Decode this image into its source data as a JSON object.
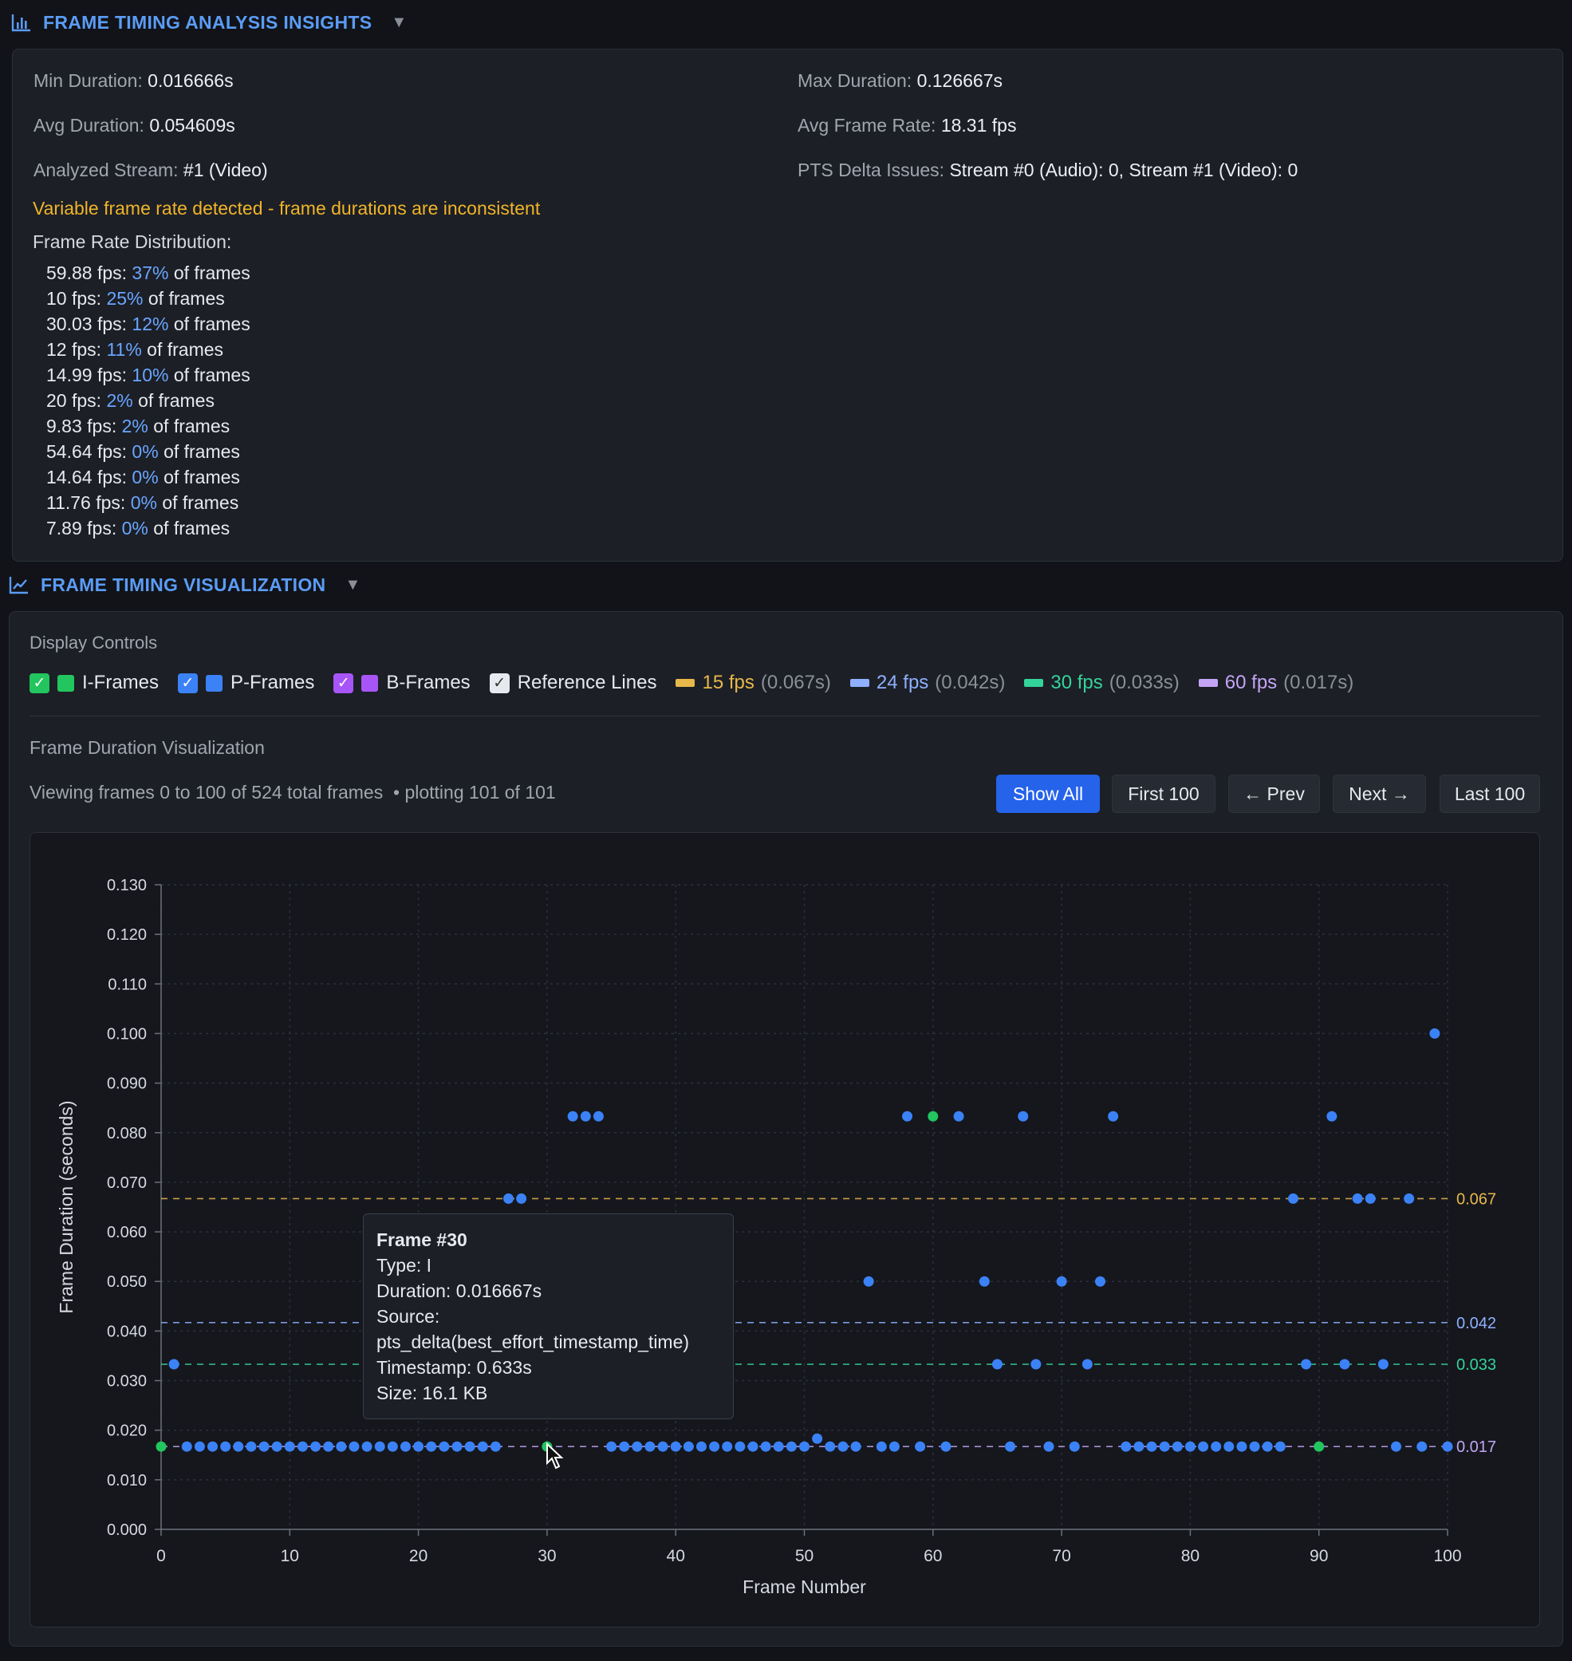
{
  "insights": {
    "title": "FRAME TIMING ANALYSIS INSIGHTS",
    "icon": "bar-chart-icon",
    "min_label": "Min Duration:",
    "min_value": "0.016666s",
    "max_label": "Max Duration:",
    "max_value": "0.126667s",
    "avg_label": "Avg Duration:",
    "avg_value": "0.054609s",
    "rate_label": "Avg Frame Rate:",
    "rate_value": "18.31 fps",
    "stream_label": "Analyzed Stream:",
    "stream_value": "#1 (Video)",
    "pts_label": "PTS Delta Issues:",
    "pts_value": "Stream #0 (Audio): 0, Stream #1 (Video): 0",
    "warning": "Variable frame rate detected - frame durations are inconsistent",
    "distribution_title": "Frame Rate Distribution:",
    "suffix": "of frames",
    "distribution": [
      {
        "fps": "59.88 fps:",
        "pct": "37%"
      },
      {
        "fps": "10 fps:",
        "pct": "25%"
      },
      {
        "fps": "30.03 fps:",
        "pct": "12%"
      },
      {
        "fps": "12 fps:",
        "pct": "11%"
      },
      {
        "fps": "14.99 fps:",
        "pct": "10%"
      },
      {
        "fps": "20 fps:",
        "pct": "2%"
      },
      {
        "fps": "9.83 fps:",
        "pct": "2%"
      },
      {
        "fps": "54.64 fps:",
        "pct": "0%"
      },
      {
        "fps": "14.64 fps:",
        "pct": "0%"
      },
      {
        "fps": "11.76 fps:",
        "pct": "0%"
      },
      {
        "fps": "7.89 fps:",
        "pct": "0%"
      }
    ]
  },
  "visualization": {
    "title": "FRAME TIMING VISUALIZATION",
    "icon": "line-chart-icon",
    "controls_title": "Display Controls",
    "toggles": [
      {
        "label": "I-Frames",
        "checked": true,
        "color": "#22c55e"
      },
      {
        "label": "P-Frames",
        "checked": true,
        "color": "#3b82f6"
      },
      {
        "label": "B-Frames",
        "checked": true,
        "color": "#a855f7"
      },
      {
        "label": "Reference Lines",
        "checked": true,
        "color": ""
      }
    ],
    "references": [
      {
        "label": "15 fps",
        "secs": "(0.067s)",
        "color": "#e8b84a"
      },
      {
        "label": "24 fps",
        "secs": "(0.042s)",
        "color": "#8fb0ff"
      },
      {
        "label": "30 fps",
        "secs": "(0.033s)",
        "color": "#34d399"
      },
      {
        "label": "60 fps",
        "secs": "(0.017s)",
        "color": "#c4a5f5"
      }
    ],
    "subtitle": "Frame Duration Visualization",
    "viewing_text": "Viewing frames 0 to 100 of 524 total frames",
    "plotting_text": "• plotting 101 of 101",
    "buttons": {
      "show_all": "Show All",
      "first": "First 100",
      "prev": "← Prev",
      "next": "Next →",
      "last": "Last 100"
    }
  },
  "tooltip": {
    "title": "Frame #30",
    "type": "Type: I",
    "duration": "Duration: 0.016667s",
    "source_label": "Source:",
    "source_value": "pts_delta(best_effort_timestamp_time)",
    "timestamp": "Timestamp: 0.633s",
    "size": "Size: 16.1 KB"
  },
  "chart_data": {
    "type": "scatter",
    "xlabel": "Frame Number",
    "ylabel": "Frame Duration (seconds)",
    "xlim": [
      0,
      100
    ],
    "ylim": [
      0,
      0.13
    ],
    "x_ticks": [
      0,
      10,
      20,
      30,
      40,
      50,
      60,
      70,
      80,
      90,
      100
    ],
    "y_ticks": [
      "0.000",
      "0.010",
      "0.020",
      "0.030",
      "0.040",
      "0.050",
      "0.060",
      "0.070",
      "0.080",
      "0.090",
      "0.100",
      "0.110",
      "0.120",
      "0.130"
    ],
    "grid": true,
    "reference_lines": [
      {
        "value": 0.0667,
        "label": "0.067",
        "color": "#e8b84a"
      },
      {
        "value": 0.0417,
        "label": "0.042",
        "color": "#8fb0ff"
      },
      {
        "value": 0.0333,
        "label": "0.033",
        "color": "#34d399"
      },
      {
        "value": 0.0167,
        "label": "0.017",
        "color": "#c4a5f5"
      }
    ],
    "i_frames": [
      0,
      30,
      60,
      90
    ],
    "durations": [
      0.0167,
      0.0333,
      0.0167,
      0.0167,
      0.0167,
      0.0167,
      0.0167,
      0.0167,
      0.0167,
      0.0167,
      0.0167,
      0.0167,
      0.0167,
      0.0167,
      0.0167,
      0.0167,
      0.0167,
      0.0167,
      0.0167,
      0.0167,
      0.0167,
      0.0167,
      0.0167,
      0.0167,
      0.0167,
      0.0167,
      0.0167,
      0.0667,
      0.0667,
      null,
      0.0167,
      null,
      0.0833,
      0.0833,
      0.0833,
      0.0167,
      0.0167,
      0.0167,
      0.0167,
      0.0167,
      0.0167,
      0.0167,
      0.0167,
      0.0167,
      0.0167,
      0.0167,
      0.0167,
      0.0167,
      0.0167,
      0.0167,
      0.0167,
      0.0183,
      0.0167,
      0.0167,
      0.0167,
      0.05,
      0.0167,
      0.0167,
      0.0833,
      0.0167,
      0.0833,
      0.0167,
      0.0833,
      null,
      0.05,
      0.0333,
      0.0167,
      0.0833,
      0.0333,
      0.0167,
      0.05,
      0.0167,
      0.0333,
      0.05,
      0.0833,
      0.0167,
      0.0167,
      0.0167,
      0.0167,
      0.0167,
      0.0167,
      0.0167,
      0.0167,
      0.0167,
      0.0167,
      0.0167,
      0.0167,
      0.0167,
      0.0667,
      0.0333,
      0.0167,
      0.0833,
      0.0333,
      0.0667,
      0.0667,
      0.0333,
      0.0167,
      0.0667,
      0.0167,
      0.1,
      0.0167
    ]
  }
}
